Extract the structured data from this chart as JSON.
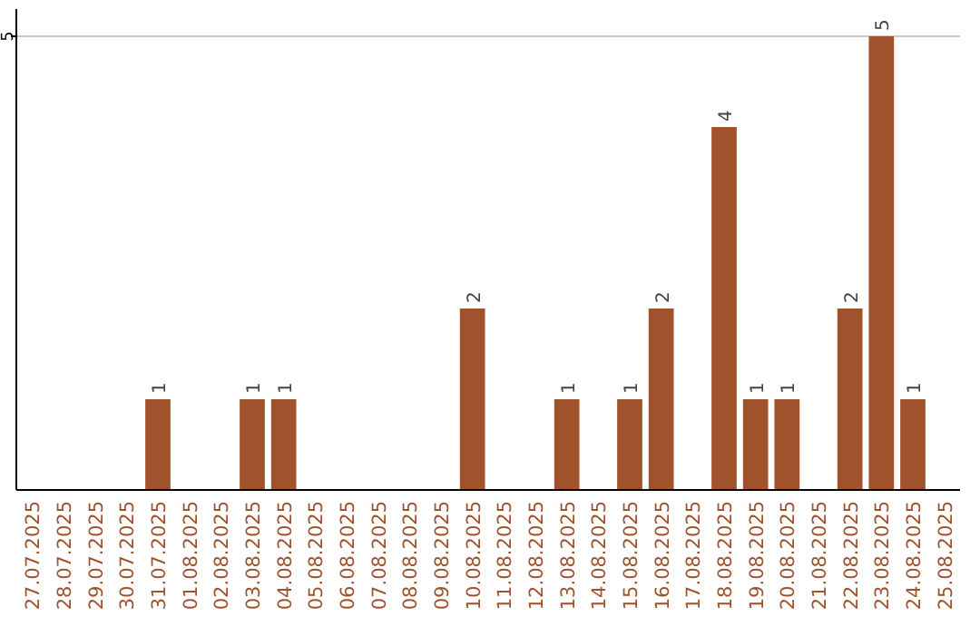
{
  "chart_data": {
    "type": "bar",
    "categories": [
      "27.07.2025",
      "28.07.2025",
      "29.07.2025",
      "30.07.2025",
      "31.07.2025",
      "01.08.2025",
      "02.08.2025",
      "03.08.2025",
      "04.08.2025",
      "05.08.2025",
      "06.08.2025",
      "07.08.2025",
      "08.08.2025",
      "09.08.2025",
      "10.08.2025",
      "11.08.2025",
      "12.08.2025",
      "13.08.2025",
      "14.08.2025",
      "15.08.2025",
      "16.08.2025",
      "17.08.2025",
      "18.08.2025",
      "19.08.2025",
      "20.08.2025",
      "21.08.2025",
      "22.08.2025",
      "23.08.2025",
      "24.08.2025",
      "25.08.2025"
    ],
    "values": [
      0,
      0,
      0,
      0,
      1,
      0,
      0,
      1,
      1,
      0,
      0,
      0,
      0,
      0,
      2,
      0,
      0,
      1,
      0,
      1,
      2,
      0,
      4,
      1,
      1,
      0,
      2,
      5,
      1,
      0
    ],
    "value_labels": [
      null,
      null,
      null,
      null,
      "1",
      null,
      null,
      "1",
      "1",
      null,
      null,
      null,
      null,
      null,
      "2",
      null,
      null,
      "1",
      null,
      "1",
      "2",
      null,
      "4",
      "1",
      "1",
      null,
      "2",
      "5",
      "1",
      null
    ],
    "color": "#a0522d",
    "ylim": [
      0,
      5.3
    ],
    "yticks": [
      5
    ],
    "grid": "y"
  }
}
